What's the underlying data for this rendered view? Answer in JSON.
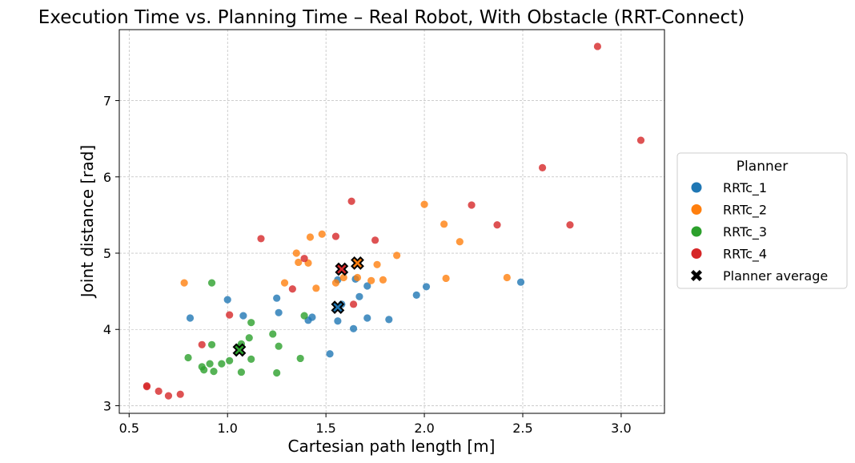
{
  "chart_data": {
    "type": "scatter",
    "title": "Execution Time vs. Planning Time – Real Robot, With Obstacle (RRT-Connect)",
    "xlabel": "Cartesian path length [m]",
    "ylabel": "Joint distance [rad]",
    "xlim": [
      0.45,
      3.22
    ],
    "ylim": [
      2.9,
      7.93
    ],
    "xticks": [
      "0.5",
      "1.0",
      "1.5",
      "2.0",
      "2.5",
      "3.0"
    ],
    "yticks": [
      "3",
      "4",
      "5",
      "6",
      "7"
    ],
    "grid": true,
    "legend": {
      "title": "Planner",
      "placement": "outside-right",
      "entries": [
        "RRTc_1",
        "RRTc_2",
        "RRTc_3",
        "RRTc_4",
        "Planner average"
      ]
    },
    "series": [
      {
        "name": "RRTc_1",
        "color": "#1f77b4",
        "points": [
          [
            0.81,
            4.15
          ],
          [
            1.0,
            4.39
          ],
          [
            1.08,
            4.18
          ],
          [
            1.25,
            4.41
          ],
          [
            1.26,
            4.22
          ],
          [
            1.41,
            4.12
          ],
          [
            1.43,
            4.16
          ],
          [
            1.52,
            3.68
          ],
          [
            1.56,
            4.11
          ],
          [
            1.56,
            4.65
          ],
          [
            1.58,
            4.33
          ],
          [
            1.64,
            4.01
          ],
          [
            1.65,
            4.66
          ],
          [
            1.67,
            4.43
          ],
          [
            1.71,
            4.57
          ],
          [
            1.71,
            4.15
          ],
          [
            1.82,
            4.13
          ],
          [
            1.96,
            4.45
          ],
          [
            2.01,
            4.56
          ],
          [
            2.49,
            4.62
          ]
        ],
        "average": [
          1.56,
          4.29
        ]
      },
      {
        "name": "RRTc_2",
        "color": "#ff7f0e",
        "points": [
          [
            0.78,
            4.61
          ],
          [
            1.29,
            4.61
          ],
          [
            1.35,
            5.0
          ],
          [
            1.36,
            4.88
          ],
          [
            1.41,
            4.87
          ],
          [
            1.42,
            5.21
          ],
          [
            1.45,
            4.54
          ],
          [
            1.48,
            5.25
          ],
          [
            1.55,
            4.61
          ],
          [
            1.59,
            4.68
          ],
          [
            1.66,
            4.68
          ],
          [
            1.73,
            4.64
          ],
          [
            1.76,
            4.85
          ],
          [
            1.79,
            4.65
          ],
          [
            1.86,
            4.97
          ],
          [
            2.0,
            5.64
          ],
          [
            2.1,
            5.38
          ],
          [
            2.11,
            4.67
          ],
          [
            2.18,
            5.15
          ],
          [
            2.42,
            4.68
          ]
        ],
        "average": [
          1.66,
          4.87
        ]
      },
      {
        "name": "RRTc_3",
        "color": "#2ca02c",
        "points": [
          [
            0.8,
            3.63
          ],
          [
            0.87,
            3.51
          ],
          [
            0.88,
            3.47
          ],
          [
            0.91,
            3.55
          ],
          [
            0.92,
            4.61
          ],
          [
            0.92,
            3.8
          ],
          [
            0.93,
            3.45
          ],
          [
            0.97,
            3.55
          ],
          [
            1.01,
            3.59
          ],
          [
            1.06,
            3.77
          ],
          [
            1.07,
            3.81
          ],
          [
            1.07,
            3.44
          ],
          [
            1.11,
            3.89
          ],
          [
            1.12,
            3.61
          ],
          [
            1.12,
            4.09
          ],
          [
            1.23,
            3.94
          ],
          [
            1.25,
            3.43
          ],
          [
            1.26,
            3.78
          ],
          [
            1.37,
            3.62
          ],
          [
            1.39,
            4.18
          ]
        ],
        "average": [
          1.06,
          3.73
        ]
      },
      {
        "name": "RRTc_4",
        "color": "#d62728",
        "points": [
          [
            0.59,
            3.26
          ],
          [
            0.59,
            3.25
          ],
          [
            0.65,
            3.19
          ],
          [
            0.7,
            3.13
          ],
          [
            0.76,
            3.15
          ],
          [
            0.87,
            3.8
          ],
          [
            1.01,
            4.19
          ],
          [
            1.17,
            5.19
          ],
          [
            1.33,
            4.53
          ],
          [
            1.39,
            4.93
          ],
          [
            1.55,
            5.22
          ],
          [
            1.63,
            5.68
          ],
          [
            1.64,
            4.33
          ],
          [
            1.75,
            5.17
          ],
          [
            2.24,
            5.63
          ],
          [
            2.37,
            5.37
          ],
          [
            2.6,
            6.12
          ],
          [
            2.74,
            5.37
          ],
          [
            2.88,
            7.71
          ],
          [
            3.1,
            6.48
          ]
        ],
        "average": [
          1.58,
          4.79
        ]
      }
    ]
  }
}
